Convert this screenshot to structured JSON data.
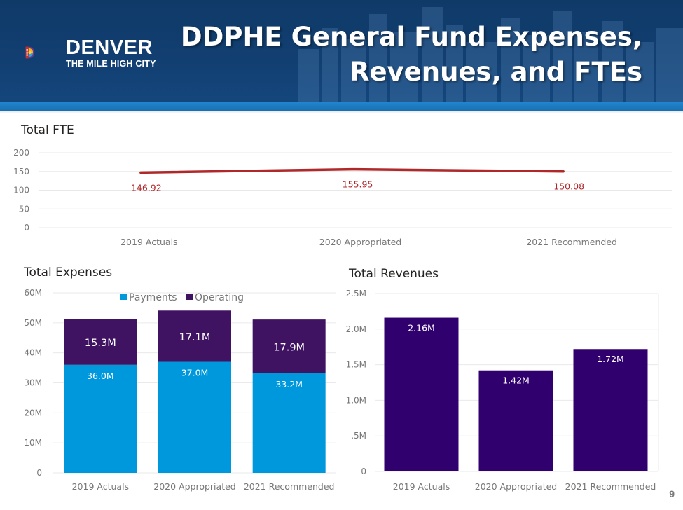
{
  "header": {
    "title_line1": "DDPHE General Fund Expenses,",
    "title_line2": "Revenues, and FTEs",
    "logo_name": "DENVER",
    "logo_tagline": "THE MILE HIGH CITY"
  },
  "page_number": "9",
  "colors": {
    "header_bg": "#123f72",
    "accent_bar": "#1f86cf",
    "fte_line": "#b0282a",
    "payments": "#0098dc",
    "operating": "#3f1262",
    "revenue": "#31006f"
  },
  "chart_data": [
    {
      "id": "fte",
      "type": "line",
      "title": "Total FTE",
      "categories": [
        "2019 Actuals",
        "2020 Appropriated",
        "2021 Recommended"
      ],
      "values": [
        146.92,
        155.95,
        150.08
      ],
      "labels": [
        "146.92",
        "155.95",
        "150.08"
      ],
      "ylim": [
        0,
        200
      ],
      "yticks": [
        "0",
        "50",
        "100",
        "150",
        "200"
      ],
      "grid": true
    },
    {
      "id": "expenses",
      "type": "bar",
      "stacked": true,
      "title": "Total Expenses",
      "categories": [
        "2019 Actuals",
        "2020 Appropriated",
        "2021 Recommended"
      ],
      "series": [
        {
          "name": "Payments",
          "values": [
            36.0,
            37.0,
            33.2
          ],
          "labels": [
            "36.0M",
            "37.0M",
            "33.2M"
          ]
        },
        {
          "name": "Operating",
          "values": [
            15.3,
            17.1,
            17.9
          ],
          "labels": [
            "15.3M",
            "17.1M",
            "17.9M"
          ]
        }
      ],
      "ylim": [
        0,
        60
      ],
      "yticks": [
        "0",
        "10M",
        "20M",
        "30M",
        "40M",
        "50M",
        "60M"
      ],
      "legend": "top",
      "grid": true
    },
    {
      "id": "revenues",
      "type": "bar",
      "title": "Total Revenues",
      "categories": [
        "2019 Actuals",
        "2020 Appropriated",
        "2021 Recommended"
      ],
      "values": [
        2.16,
        1.42,
        1.72
      ],
      "labels": [
        "2.16M",
        "1.42M",
        "1.72M"
      ],
      "ylim": [
        0,
        2.5
      ],
      "yticks": [
        "0",
        ".5M",
        "1.0M",
        "1.5M",
        "2.0M",
        "2.5M"
      ],
      "grid": true
    }
  ]
}
